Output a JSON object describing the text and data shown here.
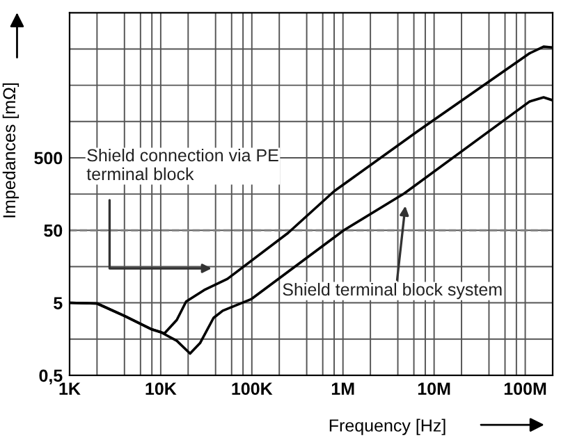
{
  "chart_data": {
    "type": "line",
    "xlabel": "Frequency [Hz]",
    "ylabel": "Impedances [mΩ]",
    "log": "xy",
    "xlim": [
      1000,
      200000000
    ],
    "ylim": [
      0.5,
      50000
    ],
    "xticks": [
      {
        "value": 1000,
        "label": "1K"
      },
      {
        "value": 2000,
        "label": null
      },
      {
        "value": 4000,
        "label": null
      },
      {
        "value": 6000,
        "label": null
      },
      {
        "value": 8000,
        "label": null
      },
      {
        "value": 10000,
        "label": "10K"
      },
      {
        "value": 20000,
        "label": null
      },
      {
        "value": 40000,
        "label": null
      },
      {
        "value": 60000,
        "label": null
      },
      {
        "value": 80000,
        "label": null
      },
      {
        "value": 100000,
        "label": "100K"
      },
      {
        "value": 200000,
        "label": null
      },
      {
        "value": 400000,
        "label": null
      },
      {
        "value": 600000,
        "label": null
      },
      {
        "value": 800000,
        "label": null
      },
      {
        "value": 1000000,
        "label": "1M"
      },
      {
        "value": 2000000,
        "label": null
      },
      {
        "value": 4000000,
        "label": null
      },
      {
        "value": 6000000,
        "label": null
      },
      {
        "value": 8000000,
        "label": null
      },
      {
        "value": 10000000,
        "label": "10M"
      },
      {
        "value": 20000000,
        "label": null
      },
      {
        "value": 40000000,
        "label": null
      },
      {
        "value": 60000000,
        "label": null
      },
      {
        "value": 80000000,
        "label": null
      },
      {
        "value": 100000000,
        "label": "100M"
      }
    ],
    "yticks": [
      {
        "value": 0.5,
        "label": "0,5"
      },
      {
        "value": 1.58,
        "label": null
      },
      5,
      {
        "value": 15.8,
        "label": null
      },
      50,
      {
        "value": 158,
        "label": null
      },
      500,
      {
        "value": 1580,
        "label": null
      },
      {
        "value": 5000,
        "label": null
      },
      {
        "value": 15800,
        "label": null
      }
    ],
    "grid": true,
    "legend": false,
    "line_style": "solid",
    "marker": "none",
    "series": [
      {
        "color": "#000000",
        "x": [
          1000,
          2000,
          4000,
          8000,
          10000,
          11000,
          15000,
          19000,
          30000,
          54000,
          250000,
          800000,
          6600000,
          112000000,
          159000000,
          200000000
        ],
        "values": [
          5,
          4.9,
          3.3,
          2.15,
          1.97,
          1.9,
          2.9,
          5.2,
          7.5,
          10.7,
          46,
          173,
          1160,
          13800,
          17000,
          16600
        ]
      },
      {
        "color": "#000000",
        "x": [
          1000,
          2000,
          4000,
          8000,
          10000,
          15000,
          21000,
          27000,
          38000,
          48000,
          98000,
          1020000,
          4700000,
          112000000,
          159000000,
          200000000
        ],
        "values": [
          5,
          4.9,
          3.3,
          2.15,
          1.97,
          1.5,
          1.0,
          1.39,
          3.1,
          3.9,
          5.6,
          50,
          161,
          2990,
          3400,
          3100
        ]
      }
    ],
    "ref_lines": [
      {
        "axis": "y",
        "value": 50,
        "color": "#808080",
        "line_style": "dashed"
      }
    ],
    "annotations": [
      "Shield connection via PE\nterminal block",
      "Shield terminal block system"
    ]
  }
}
